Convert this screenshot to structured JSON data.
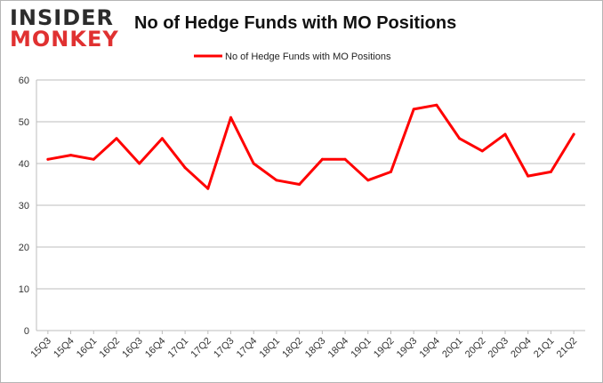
{
  "logo": {
    "line1": "INSIDER",
    "line2": "MONKEY"
  },
  "chart_data": {
    "type": "line",
    "title": "No of Hedge Funds with MO Positions",
    "xlabel": "",
    "ylabel": "",
    "categories": [
      "15Q3",
      "15Q4",
      "16Q1",
      "16Q2",
      "16Q3",
      "16Q4",
      "17Q1",
      "17Q2",
      "17Q3",
      "17Q4",
      "18Q1",
      "18Q2",
      "18Q3",
      "18Q4",
      "19Q1",
      "19Q2",
      "19Q3",
      "19Q4",
      "20Q1",
      "20Q2",
      "20Q3",
      "20Q4",
      "21Q1",
      "21Q2"
    ],
    "series": [
      {
        "name": "No of Hedge Funds with MO Positions",
        "color": "#ff0000",
        "values": [
          41,
          42,
          41,
          46,
          40,
          46,
          39,
          34,
          51,
          40,
          36,
          35,
          41,
          41,
          36,
          38,
          53,
          54,
          46,
          43,
          47,
          37,
          38,
          47
        ]
      }
    ],
    "ylim": [
      0,
      60
    ],
    "yticks": [
      0,
      10,
      20,
      30,
      40,
      50,
      60
    ],
    "grid": true,
    "legend": "top-center"
  }
}
